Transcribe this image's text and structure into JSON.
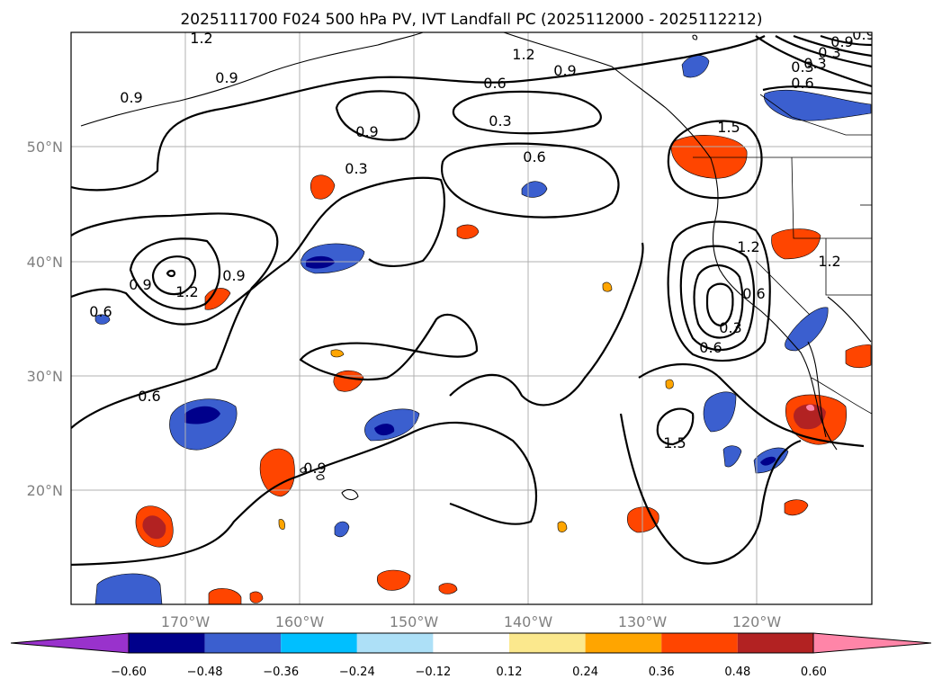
{
  "title": "2025111700 F024 500 hPa PV, IVT Landfall PC (2025112000 - 2025112212)",
  "map": {
    "type": "contour-map",
    "projection": "PlateCarree",
    "lon_range": [
      -180,
      -110
    ],
    "lat_range": [
      10,
      60
    ],
    "lon_ticks": [
      "170°W",
      "160°W",
      "150°W",
      "140°W",
      "130°W",
      "120°W"
    ],
    "lat_ticks": [
      "50°N",
      "40°N",
      "30°N",
      "20°N"
    ],
    "gridlines": true,
    "contour_field": "500 hPa PV",
    "contour_labels": [
      "1.2",
      "0.9",
      "1.2",
      "0.6",
      "0.9",
      "0.9",
      "0.3",
      "0.9",
      "0.3",
      "0.6",
      "1.5",
      "0.9",
      "1.2",
      "0.9",
      "0.6",
      "0.6",
      "0.9",
      "1.2",
      "0.6",
      "0.3",
      "0.6",
      "1.2",
      "1.5",
      "0.9",
      "0.3",
      "0.3",
      "0.3",
      "0.6",
      "0.9"
    ]
  },
  "colorbar": {
    "variable": "IVT Landfall PC",
    "ticks": [
      "−0.60",
      "−0.48",
      "−0.36",
      "−0.24",
      "−0.12",
      "0.12",
      "0.24",
      "0.36",
      "0.48",
      "0.60"
    ],
    "colors": {
      "under": "#9932cc",
      "bins": [
        "#00008b",
        "#3b5fcf",
        "#00bfff",
        "#ade0f7",
        "#ffffff",
        "#fbe88d",
        "#ffa500",
        "#ff4500",
        "#b22222",
        "#ff85a8"
      ],
      "over": "#ff85a8"
    }
  }
}
